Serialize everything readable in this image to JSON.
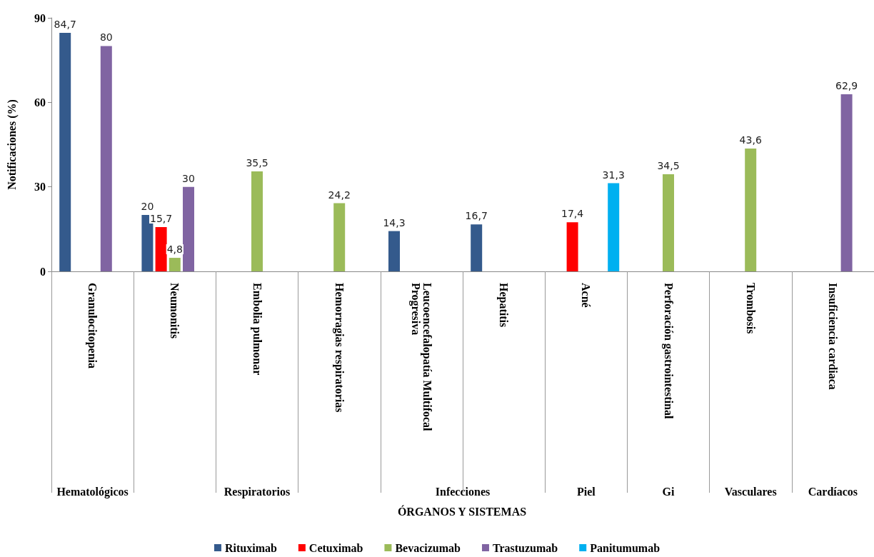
{
  "chart_data": {
    "type": "bar",
    "categories": [
      "Granulocitopenia",
      "Neumonitis",
      "Embolia pulmonar",
      "Hemorragias respiratorias",
      "Leucoencefalopatía Multifocal Progresiva",
      "Hepatitis",
      "Acné",
      "Perforación gastrointestinal",
      "Trombosis",
      "Insuficiencia cardiaca"
    ],
    "series": [
      {
        "name": "Rituximab",
        "color": "#345a8c",
        "values": [
          84.7,
          20,
          null,
          null,
          14.3,
          16.7,
          null,
          null,
          null,
          null
        ],
        "value_labels": [
          "84,7",
          "20",
          null,
          null,
          "14,3",
          "16,7",
          null,
          null,
          null,
          null
        ]
      },
      {
        "name": "Cetuximab",
        "color": "#ff0000",
        "values": [
          null,
          15.7,
          null,
          null,
          null,
          null,
          17.4,
          null,
          null,
          null
        ],
        "value_labels": [
          null,
          "15,7",
          null,
          null,
          null,
          null,
          "17,4",
          null,
          null,
          null
        ]
      },
      {
        "name": "Bevacizumab",
        "color": "#9bbb59",
        "values": [
          null,
          4.8,
          35.5,
          24.2,
          null,
          null,
          null,
          34.5,
          43.6,
          null
        ],
        "value_labels": [
          null,
          "4,8",
          "35,5",
          "24,2",
          null,
          null,
          null,
          "34,5",
          "43,6",
          null
        ]
      },
      {
        "name": "Trastuzumab",
        "color": "#8064a2",
        "values": [
          80,
          30,
          null,
          null,
          null,
          null,
          null,
          null,
          null,
          62.9
        ],
        "value_labels": [
          "80",
          "30",
          null,
          null,
          null,
          null,
          null,
          null,
          null,
          "62,9"
        ]
      },
      {
        "name": "Panitumumab",
        "color": "#00b0f0",
        "values": [
          null,
          null,
          null,
          null,
          null,
          null,
          31.3,
          null,
          null,
          null
        ],
        "value_labels": [
          null,
          null,
          null,
          null,
          null,
          null,
          "31,3",
          null,
          null,
          null
        ]
      }
    ],
    "ylabel": "Notificaciones (%)",
    "ylim": [
      0,
      90
    ],
    "yticks": [
      0,
      30,
      60,
      90
    ],
    "annotations": [
      "Hematológicos",
      "Respiratorios",
      "Infecciones",
      "Piel",
      "Gi",
      "Vasculares",
      "Cardíacos",
      "ÓRGANOS Y SISTEMAS"
    ],
    "grid": false,
    "legend": "bottom"
  }
}
